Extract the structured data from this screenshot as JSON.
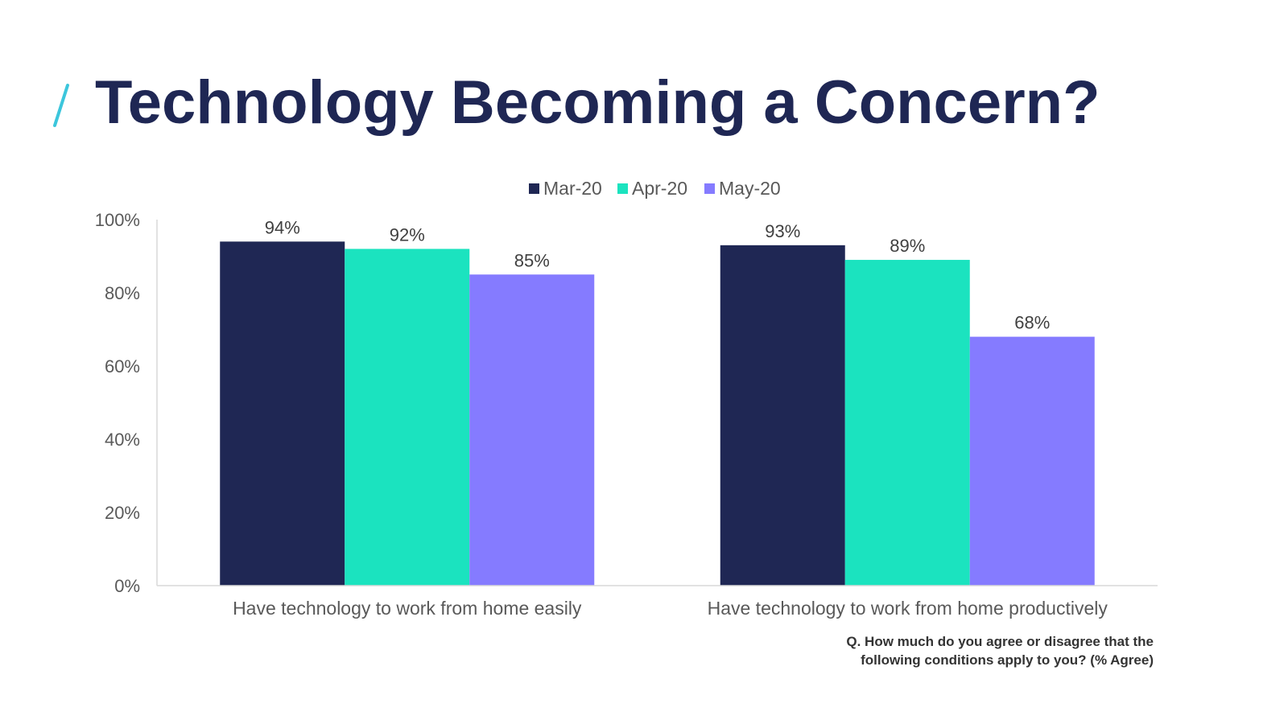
{
  "page": {
    "title": "Technology Becoming a Concern?",
    "footnote_line1": "Q. How much do you agree or disagree that the",
    "footnote_line2": "following conditions apply to you? (% Agree)",
    "accent_color": "#3cc6dc",
    "title_color": "#1f2754"
  },
  "chart_data": {
    "type": "bar",
    "title": "",
    "xlabel": "",
    "ylabel": "",
    "categories": [
      "Have technology to work from home easily",
      "Have technology to work from home productively"
    ],
    "series": [
      {
        "name": "Mar-20",
        "values": [
          94,
          93
        ],
        "labels": [
          "94%",
          "93%"
        ],
        "color": "#1f2754"
      },
      {
        "name": "Apr-20",
        "values": [
          92,
          89
        ],
        "labels": [
          "92%",
          "89%"
        ],
        "color": "#1be3bf"
      },
      {
        "name": "May-20",
        "values": [
          85,
          68
        ],
        "labels": [
          "85%",
          "68%"
        ],
        "color": "#857bff"
      }
    ],
    "ylim": [
      0,
      100
    ],
    "yticks": [
      0,
      20,
      40,
      60,
      80,
      100
    ],
    "ytick_labels": [
      "0%",
      "20%",
      "40%",
      "60%",
      "80%",
      "100%"
    ],
    "grid": false,
    "legend_position": "top-center"
  }
}
